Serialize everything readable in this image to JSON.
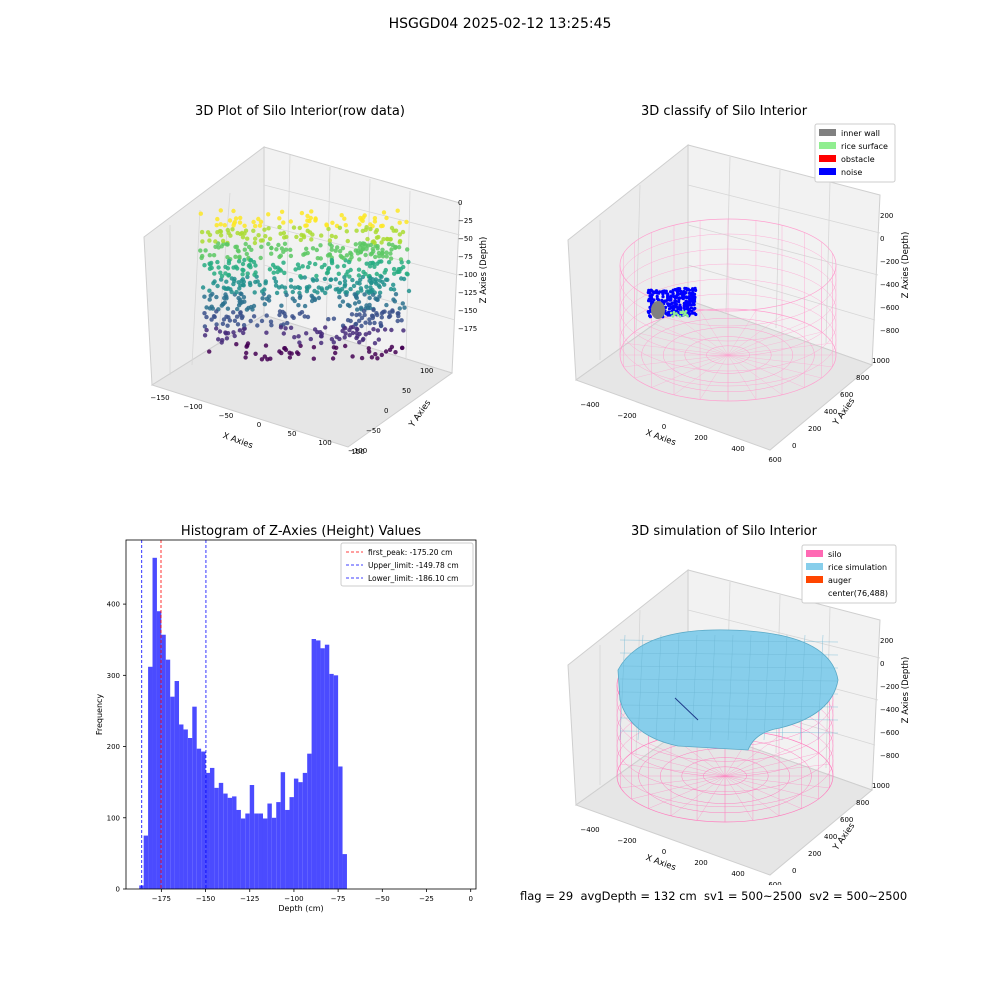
{
  "figure": {
    "suptitle": "HSGGD04 2025-02-12 13:25:45",
    "footer": "flag = 29  avgDepth = 132 cm  sv1 = 500~2500  sv2 = 500~2500"
  },
  "colors": {
    "histogram_bar": "#4b4bff",
    "first_peak_line": "#ff0000",
    "limit_line": "#0000ff",
    "inner_wall": "#808080",
    "rice_surface": "#90ee90",
    "obstacle": "#ff0000",
    "noise": "#0000ff",
    "silo": "#ff69b4",
    "rice_simulation": "#87ceeb",
    "auger": "#ff4500"
  },
  "chart_data": [
    {
      "type": "scatter",
      "title": "3D Plot of Silo Interior(row data)",
      "xlabel": "X Axies",
      "ylabel": "Y Axies",
      "zlabel": "Z Axies (Depth)",
      "xticks": [
        "−150",
        "−100",
        "−50",
        "0",
        "50",
        "100",
        "150"
      ],
      "yticks": [
        "−100",
        "−50",
        "0",
        "50",
        "100"
      ],
      "zticks": [
        "0",
        "−25",
        "−50",
        "−75",
        "−100",
        "−125",
        "−150",
        "−175"
      ],
      "xlim": [
        -160,
        160
      ],
      "ylim": [
        -110,
        120
      ],
      "zlim": [
        -190,
        5
      ],
      "colormap": "viridis"
    },
    {
      "type": "scatter",
      "title": "3D classify of Silo Interior",
      "xlabel": "X Axies",
      "ylabel": "Y Axies",
      "zlabel": "Z Axies (Depth)",
      "xticks": [
        "−400",
        "−200",
        "0",
        "200",
        "400",
        "600"
      ],
      "yticks": [
        "0",
        "200",
        "400",
        "600",
        "800",
        "1000"
      ],
      "zticks": [
        "200",
        "0",
        "−200",
        "−400",
        "−600",
        "−800"
      ],
      "legend": [
        "inner wall",
        "rice surface",
        "obstacle",
        "noise"
      ],
      "legend_position": "top-right"
    },
    {
      "type": "bar",
      "title": "Histogram of Z-Axies (Height) Values",
      "xlabel": "Depth (cm)",
      "ylabel": "Frequency",
      "bin_width": 2.5,
      "bin_start": -187.5,
      "values": [
        5,
        75,
        312,
        465,
        390,
        357,
        322,
        270,
        292,
        231,
        224,
        212,
        256,
        197,
        193,
        163,
        170,
        142,
        149,
        134,
        128,
        130,
        111,
        99,
        106,
        146,
        106,
        106,
        99,
        120,
        100,
        122,
        164,
        111,
        129,
        155,
        150,
        163,
        190,
        351,
        349,
        338,
        343,
        302,
        300,
        172,
        49
      ],
      "xlim": [
        -195,
        3
      ],
      "ylim": [
        0,
        490
      ],
      "xticks": [
        -175,
        -150,
        -125,
        -100,
        -75,
        -50,
        -25,
        0
      ],
      "xtick_labels": [
        "−175",
        "−150",
        "−125",
        "−100",
        "−75",
        "−50",
        "−25",
        "0"
      ],
      "yticks": [
        0,
        100,
        200,
        300,
        400
      ],
      "lines": [
        {
          "label": "first_peak: -175.20 cm",
          "x": -175.2,
          "color": "#ff0000"
        },
        {
          "label": "Upper_limit: -149.78 cm",
          "x": -149.78,
          "color": "#0000ff"
        },
        {
          "label": "Lower_limit: -186.10 cm",
          "x": -186.1,
          "color": "#0000ff"
        }
      ],
      "legend_position": "top-right"
    },
    {
      "type": "scatter",
      "title": "3D simulation of Silo Interior",
      "xlabel": "X Axies",
      "ylabel": "Y Axies",
      "zlabel": "Z Axies (Depth)",
      "xticks": [
        "−400",
        "−200",
        "0",
        "200",
        "400",
        "600"
      ],
      "yticks": [
        "0",
        "200",
        "400",
        "600",
        "800",
        "1000"
      ],
      "zticks": [
        "200",
        "0",
        "−200",
        "−400",
        "−600",
        "−800"
      ],
      "legend": [
        "silo",
        "rice simulation",
        "auger",
        "center(76,488)"
      ],
      "legend_position": "top-right"
    }
  ]
}
